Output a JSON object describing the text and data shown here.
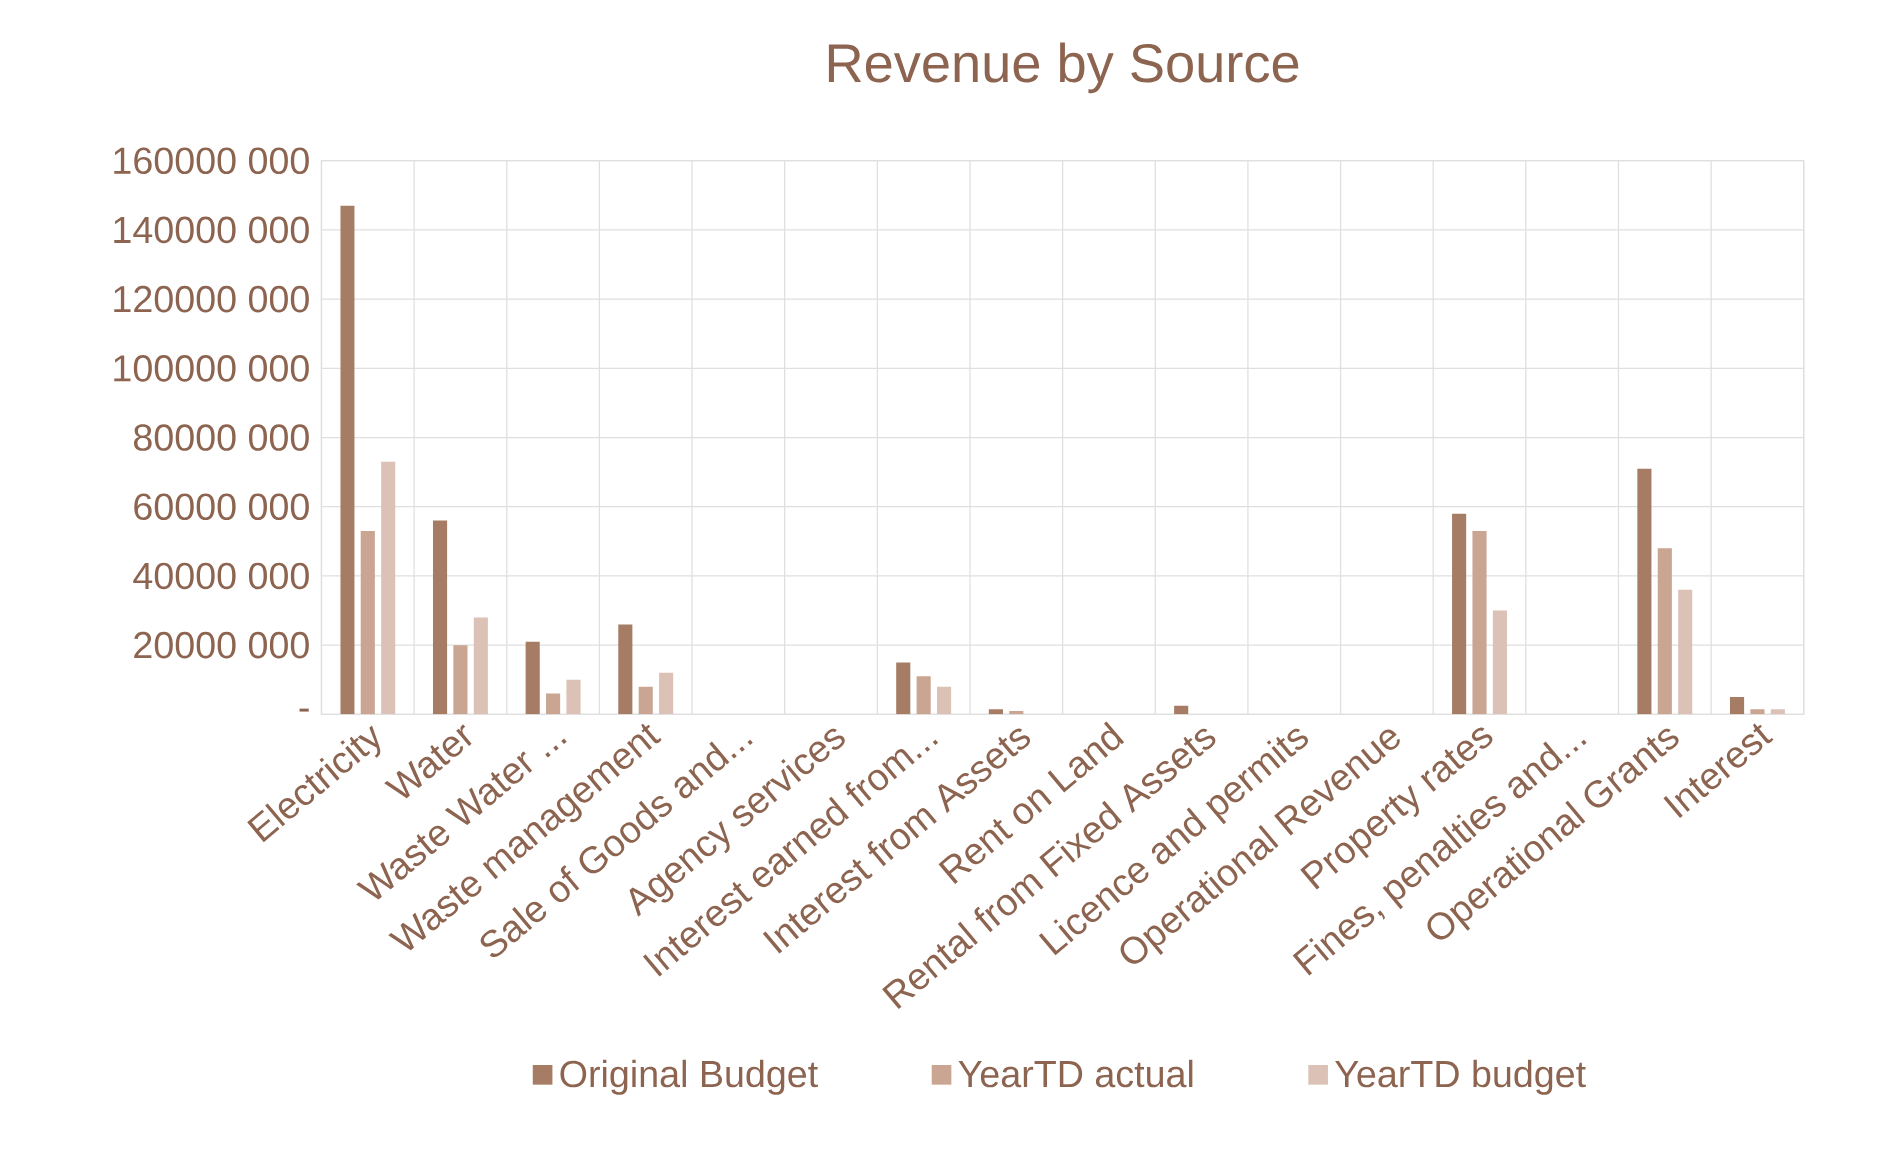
{
  "chart_data": {
    "type": "bar",
    "title": "Revenue by Source",
    "categories": [
      "Electricity",
      "Water",
      "Waste Water ...",
      "Waste management",
      "Sale of Goods and...",
      "Agency services",
      "Interest earned from...",
      "Interest from Assets",
      "Rent on Land",
      "Rental from Fixed Assets",
      "Licence and permits",
      "Operational Revenue",
      "Property rates",
      "Fines, penalties and...",
      "Operational Grants",
      "Interest"
    ],
    "series": [
      {
        "name": "Original Budget",
        "color": "#a67c65",
        "values": [
          147000000,
          56000000,
          21000000,
          26000000,
          0,
          0,
          15000000,
          1500000,
          0,
          2500000,
          0,
          0,
          58000000,
          0,
          71000000,
          5000000
        ]
      },
      {
        "name": "YearTD actual",
        "color": "#c9a592",
        "values": [
          53000000,
          20000000,
          6000000,
          8000000,
          0,
          0,
          11000000,
          1000000,
          0,
          0,
          0,
          0,
          53000000,
          0,
          48000000,
          1500000
        ]
      },
      {
        "name": "YearTD budget",
        "color": "#dcc2b6",
        "values": [
          73000000,
          28000000,
          10000000,
          12000000,
          0,
          0,
          8000000,
          0,
          0,
          0,
          0,
          0,
          30000000,
          0,
          36000000,
          1500000
        ]
      }
    ],
    "ylim": [
      0,
      160000000
    ],
    "yticks": [
      {
        "value": 0,
        "label": "-"
      },
      {
        "value": 20000000,
        "label": "20000 000"
      },
      {
        "value": 40000000,
        "label": "40000 000"
      },
      {
        "value": 60000000,
        "label": "60000 000"
      },
      {
        "value": 80000000,
        "label": "80000 000"
      },
      {
        "value": 100000000,
        "label": "100000 000"
      },
      {
        "value": 120000000,
        "label": "120000 000"
      },
      {
        "value": 140000000,
        "label": "140000 000"
      },
      {
        "value": 160000000,
        "label": "160000 000"
      }
    ],
    "grid": true,
    "legend": "bottom"
  }
}
